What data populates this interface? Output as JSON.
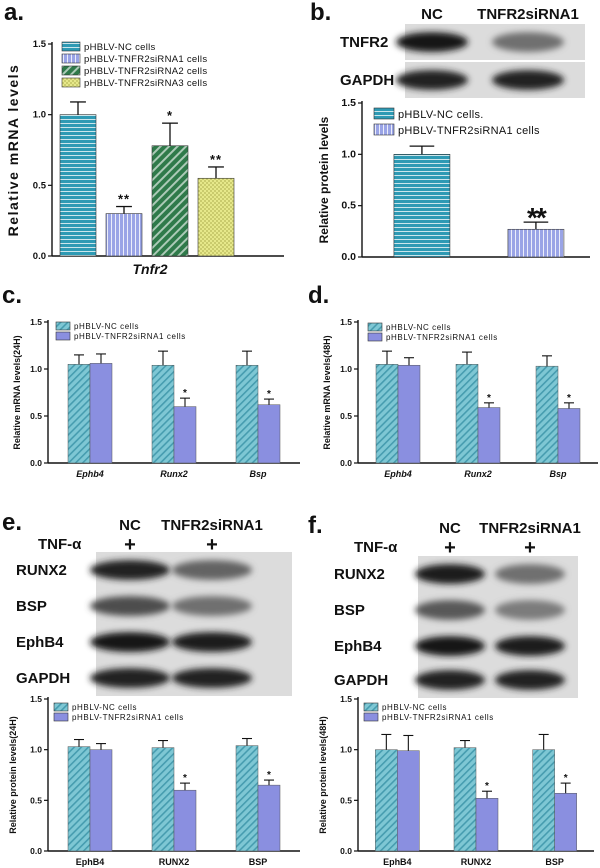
{
  "panel_labels": [
    "a.",
    "b.",
    "c.",
    "d.",
    "e.",
    "f."
  ],
  "colors": {
    "nc": "#2e9ab4",
    "si1": "#9aa4e6",
    "si2": "#2f7a4a",
    "si3": "#e6e88a",
    "hatch_nc": "#7ec7d4",
    "bar_solid": "#8a8fe0",
    "stripe_line": "#ffffff"
  },
  "blot_b": {
    "headers": [
      "NC",
      "TNFR2siRNA1"
    ],
    "rows": [
      "TNFR2",
      "GAPDH"
    ],
    "intensities": [
      [
        0.95,
        0.55
      ],
      [
        0.9,
        0.9
      ]
    ]
  },
  "blot_e": {
    "treatment_label": "TNF-α",
    "treatment_marks": [
      "+",
      "+"
    ],
    "headers": [
      "NC",
      "TNFR2siRNA1"
    ],
    "rows": [
      "RUNX2",
      "BSP",
      "EphB4",
      "GAPDH"
    ],
    "intensities": [
      [
        0.9,
        0.6
      ],
      [
        0.7,
        0.55
      ],
      [
        0.95,
        0.92
      ],
      [
        0.9,
        0.9
      ]
    ]
  },
  "blot_f": {
    "treatment_label": "TNF-α",
    "treatment_marks": [
      "+",
      "+"
    ],
    "headers": [
      "NC",
      "TNFR2siRNA1"
    ],
    "rows": [
      "RUNX2",
      "BSP",
      "EphB4",
      "GAPDH"
    ],
    "intensities": [
      [
        0.92,
        0.55
      ],
      [
        0.65,
        0.5
      ],
      [
        0.95,
        0.92
      ],
      [
        0.9,
        0.9
      ]
    ]
  },
  "chart_data": [
    {
      "panel": "a.",
      "type": "bar",
      "ylabel": "Relative mRNA levels",
      "xlabel": "Tnfr2",
      "ylim": [
        0,
        1.5
      ],
      "yticks": [
        "0.0",
        "0.5",
        "1.0",
        "1.5"
      ],
      "categories": [
        "Tnfr2"
      ],
      "legend_position": "top-right",
      "series": [
        {
          "name": "pHBLV-NC cells",
          "values": [
            1.0
          ],
          "errors": [
            0.09
          ],
          "sig": ""
        },
        {
          "name": "pHBLV-TNFR2siRNA1 cells",
          "values": [
            0.3
          ],
          "errors": [
            0.05
          ],
          "sig": "**"
        },
        {
          "name": "pHBLV-TNFR2siRNA2 cells",
          "values": [
            0.78
          ],
          "errors": [
            0.16
          ],
          "sig": "*"
        },
        {
          "name": "pHBLV-TNFR2siRNA3 cells",
          "values": [
            0.55
          ],
          "errors": [
            0.08
          ],
          "sig": "**"
        }
      ]
    },
    {
      "panel": "b.",
      "type": "bar",
      "ylabel": "Relative protein levels",
      "ylim": [
        0,
        1.5
      ],
      "yticks": [
        "0.0",
        "0.5",
        "1.0",
        "1.5"
      ],
      "legend_position": "top-right",
      "series": [
        {
          "name": "pHBLV-NC cells.",
          "values": [
            1.0
          ],
          "errors": [
            0.08
          ],
          "sig": ""
        },
        {
          "name": "pHBLV-TNFR2siRNA1 cells",
          "values": [
            0.27
          ],
          "errors": [
            0.07
          ],
          "sig": "**"
        }
      ]
    },
    {
      "panel": "c.",
      "type": "bar",
      "ylabel": "Relative mRNA levels(24H)",
      "ylim": [
        0,
        1.5
      ],
      "yticks": [
        "0.0",
        "0.5",
        "1.0",
        "1.5"
      ],
      "categories": [
        "Ephb4",
        "Runx2",
        "Bsp"
      ],
      "legend_position": "top-left",
      "series": [
        {
          "name": "pHBLV-NC cells",
          "values": [
            1.05,
            1.04,
            1.04
          ],
          "errors": [
            0.1,
            0.15,
            0.15
          ],
          "sig": [
            "",
            "",
            ""
          ]
        },
        {
          "name": "pHBLV-TNFR2siRNA1 cells",
          "values": [
            1.06,
            0.6,
            0.62
          ],
          "errors": [
            0.1,
            0.09,
            0.06
          ],
          "sig": [
            "",
            "*",
            "*"
          ]
        }
      ]
    },
    {
      "panel": "d.",
      "type": "bar",
      "ylabel": "Relative mRNA levels(48H)",
      "ylim": [
        0,
        1.5
      ],
      "yticks": [
        "0.0",
        "0.5",
        "1.0",
        "1.5"
      ],
      "categories": [
        "Ephb4",
        "Runx2",
        "Bsp"
      ],
      "legend_position": "top-left",
      "series": [
        {
          "name": "pHBLV-NC cells",
          "values": [
            1.05,
            1.05,
            1.03
          ],
          "errors": [
            0.14,
            0.13,
            0.11
          ],
          "sig": [
            "",
            "",
            ""
          ]
        },
        {
          "name": "pHBLV-TNFR2siRNA1 cells",
          "values": [
            1.04,
            0.59,
            0.58
          ],
          "errors": [
            0.08,
            0.05,
            0.06
          ],
          "sig": [
            "",
            "*",
            "*"
          ]
        }
      ]
    },
    {
      "panel": "e.",
      "type": "bar",
      "ylabel": "Relative protein levels(24H)",
      "ylim": [
        0,
        1.5
      ],
      "yticks": [
        "0.0",
        "0.5",
        "1.0",
        "1.5"
      ],
      "categories": [
        "EphB4",
        "RUNX2",
        "BSP"
      ],
      "legend_position": "top-left",
      "series": [
        {
          "name": "pHBLV-NC cells",
          "values": [
            1.03,
            1.02,
            1.04
          ],
          "errors": [
            0.07,
            0.07,
            0.07
          ],
          "sig": [
            "",
            "",
            ""
          ]
        },
        {
          "name": "pHBLV-TNFR2siRNA1 cells",
          "values": [
            1.0,
            0.6,
            0.65
          ],
          "errors": [
            0.06,
            0.07,
            0.05
          ],
          "sig": [
            "",
            "*",
            "*"
          ]
        }
      ]
    },
    {
      "panel": "f.",
      "type": "bar",
      "ylabel": "Relative protein levels(48H)",
      "ylim": [
        0,
        1.5
      ],
      "yticks": [
        "0.0",
        "0.5",
        "1.0",
        "1.5"
      ],
      "categories": [
        "EphB4",
        "RUNX2",
        "BSP"
      ],
      "legend_position": "top-left",
      "series": [
        {
          "name": "pHBLV-NC cells",
          "values": [
            1.0,
            1.02,
            1.0
          ],
          "errors": [
            0.15,
            0.07,
            0.15
          ],
          "sig": [
            "",
            "",
            ""
          ]
        },
        {
          "name": "pHBLV-TNFR2siRNA1 cells",
          "values": [
            0.99,
            0.52,
            0.57
          ],
          "errors": [
            0.15,
            0.07,
            0.1
          ],
          "sig": [
            "",
            "*",
            "*"
          ]
        }
      ]
    }
  ]
}
